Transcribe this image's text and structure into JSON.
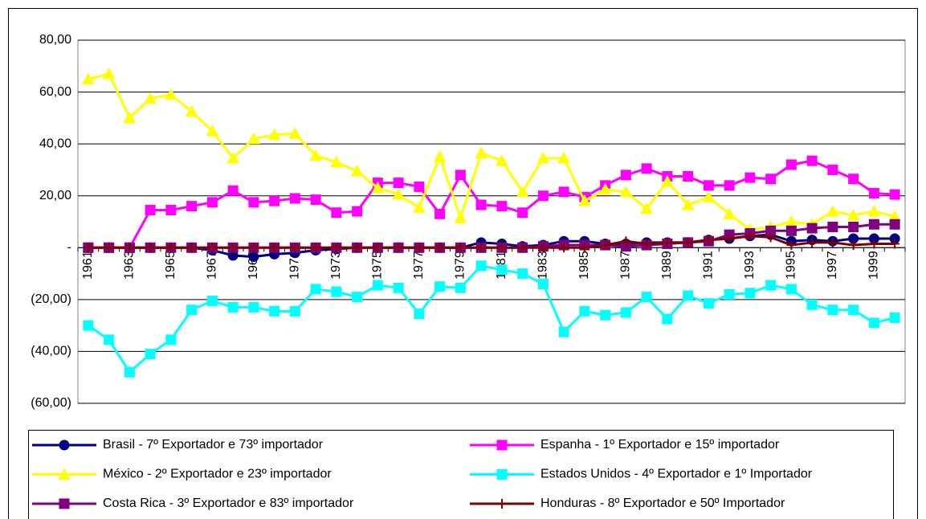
{
  "chart_data": {
    "type": "line",
    "categories": [
      "1961",
      null,
      "1963",
      null,
      "1965",
      null,
      "1967",
      null,
      "1969",
      null,
      "1971",
      null,
      "1973",
      null,
      "1975",
      null,
      "1977",
      null,
      "1979",
      null,
      "1981",
      null,
      "1983",
      null,
      "1985",
      null,
      "1987",
      null,
      "1989",
      null,
      "1991",
      null,
      "1993",
      null,
      "1995",
      null,
      "1997",
      null,
      "1999",
      null
    ],
    "ylim": [
      -60,
      80
    ],
    "yticks": [
      {
        "value": 80,
        "label": "80,00"
      },
      {
        "value": 60,
        "label": "60,00"
      },
      {
        "value": 40,
        "label": "40,00"
      },
      {
        "value": 20,
        "label": "20,00"
      },
      {
        "value": 0,
        "label": "-"
      },
      {
        "value": -20,
        "label": "(20,00)"
      },
      {
        "value": -40,
        "label": "(40,00)"
      },
      {
        "value": -60,
        "label": "(60,00)"
      }
    ],
    "grid": true,
    "series": [
      {
        "name": "Brasil - 7º Exportador e 73º importador",
        "color": "#000080",
        "marker": "circle",
        "values": [
          0,
          0,
          0,
          0,
          0,
          0,
          -1,
          -3,
          -3.5,
          -2.5,
          -2,
          -1,
          -0.5,
          0,
          0,
          0,
          0,
          0,
          0,
          2,
          1.5,
          0.5,
          1,
          2.5,
          2.5,
          1.5,
          1.5,
          2,
          2,
          2,
          3,
          3.5,
          4.5,
          5,
          2.5,
          3,
          2.5,
          3.5,
          3.5,
          3.5
        ]
      },
      {
        "name": "Espanha - 1º Exportador e 15º importador",
        "color": "#ff00ff",
        "marker": "square",
        "values": [
          0,
          0,
          0,
          14.5,
          14.5,
          16,
          17.5,
          22,
          17.5,
          18,
          19,
          18.5,
          13.5,
          14,
          25,
          25,
          23.5,
          13,
          28,
          16.5,
          16,
          13.5,
          20,
          21.5,
          19.5,
          24,
          28,
          30.5,
          27.5,
          27.5,
          24,
          24,
          27,
          26.5,
          32,
          33.5,
          30,
          26.5,
          21,
          20.5
        ]
      },
      {
        "name": "México - 2º Exportador e 23º importador",
        "color": "#ffff00",
        "marker": "triangle",
        "values": [
          65,
          67,
          50,
          57.5,
          59,
          52.5,
          45,
          34.5,
          42,
          43.5,
          44,
          35.5,
          33,
          29.5,
          23,
          20.5,
          15.5,
          35,
          11.5,
          36.5,
          33.5,
          21.5,
          34.5,
          34.5,
          18,
          22.5,
          21.5,
          15,
          25.5,
          16.5,
          19.5,
          13,
          7,
          8,
          10,
          9,
          14,
          12.5,
          14,
          12
        ]
      },
      {
        "name": "Estados Unidos - 4º Exportador e 1º Importador",
        "color": "#00ffff",
        "marker": "square",
        "values": [
          -30,
          -35.5,
          -48,
          -41,
          -35.5,
          -24,
          -20.5,
          -23,
          -23,
          -24.5,
          -24.5,
          -16,
          -17,
          -19,
          -14.5,
          -15.5,
          -25.5,
          -15,
          -15.5,
          -7,
          -8.5,
          -10,
          -14,
          -32.5,
          -24.5,
          -26,
          -25,
          -19,
          -27.5,
          -18.5,
          -21.5,
          -18,
          -17.5,
          -14.5,
          -16,
          -22,
          -24,
          -24,
          -29,
          -27
        ]
      },
      {
        "name": "Costa Rica - 3º Exportador e 83º importador",
        "color": "#800080",
        "marker": "square",
        "values": [
          0,
          0,
          0,
          0,
          0,
          0,
          0,
          0,
          0,
          0,
          0,
          0,
          0,
          0,
          0,
          0,
          0,
          0,
          0,
          0,
          0,
          0,
          0.5,
          1,
          1,
          1,
          0.5,
          1,
          1.5,
          2,
          2.5,
          5,
          5.5,
          6.5,
          6.5,
          7.5,
          8,
          8,
          9,
          9
        ]
      },
      {
        "name": "Honduras - 8º Exportador e 50º Importador",
        "color": "#800000",
        "marker": "plus",
        "values": [
          0,
          0,
          0,
          0,
          0,
          0,
          0,
          0,
          0,
          0,
          0,
          0,
          0,
          0,
          0,
          0,
          0,
          0,
          0,
          0,
          0,
          0,
          0,
          0,
          0,
          1,
          2.5,
          1.5,
          2,
          2,
          3,
          3.5,
          4.5,
          4,
          1,
          2,
          2,
          1,
          1.5,
          1.5
        ]
      }
    ]
  }
}
